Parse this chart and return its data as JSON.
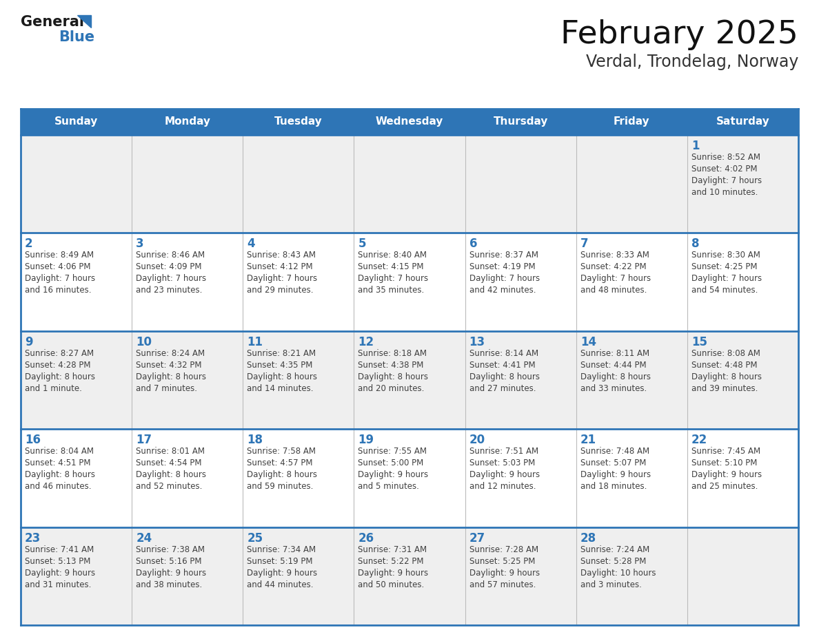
{
  "title": "February 2025",
  "subtitle": "Verdal, Trondelag, Norway",
  "days_of_week": [
    "Sunday",
    "Monday",
    "Tuesday",
    "Wednesday",
    "Thursday",
    "Friday",
    "Saturday"
  ],
  "header_bg": "#2E75B6",
  "header_text": "#FFFFFF",
  "cell_bg_light": "#EFEFEF",
  "cell_bg_white": "#FFFFFF",
  "day_number_color": "#2E75B6",
  "text_color": "#404040",
  "grid_line_color": "#2E75B6",
  "logo_general_color": "#1a1a1a",
  "logo_blue_color": "#2E75B6",
  "weeks": [
    [
      {
        "day": null,
        "info": ""
      },
      {
        "day": null,
        "info": ""
      },
      {
        "day": null,
        "info": ""
      },
      {
        "day": null,
        "info": ""
      },
      {
        "day": null,
        "info": ""
      },
      {
        "day": null,
        "info": ""
      },
      {
        "day": 1,
        "info": "Sunrise: 8:52 AM\nSunset: 4:02 PM\nDaylight: 7 hours\nand 10 minutes."
      }
    ],
    [
      {
        "day": 2,
        "info": "Sunrise: 8:49 AM\nSunset: 4:06 PM\nDaylight: 7 hours\nand 16 minutes."
      },
      {
        "day": 3,
        "info": "Sunrise: 8:46 AM\nSunset: 4:09 PM\nDaylight: 7 hours\nand 23 minutes."
      },
      {
        "day": 4,
        "info": "Sunrise: 8:43 AM\nSunset: 4:12 PM\nDaylight: 7 hours\nand 29 minutes."
      },
      {
        "day": 5,
        "info": "Sunrise: 8:40 AM\nSunset: 4:15 PM\nDaylight: 7 hours\nand 35 minutes."
      },
      {
        "day": 6,
        "info": "Sunrise: 8:37 AM\nSunset: 4:19 PM\nDaylight: 7 hours\nand 42 minutes."
      },
      {
        "day": 7,
        "info": "Sunrise: 8:33 AM\nSunset: 4:22 PM\nDaylight: 7 hours\nand 48 minutes."
      },
      {
        "day": 8,
        "info": "Sunrise: 8:30 AM\nSunset: 4:25 PM\nDaylight: 7 hours\nand 54 minutes."
      }
    ],
    [
      {
        "day": 9,
        "info": "Sunrise: 8:27 AM\nSunset: 4:28 PM\nDaylight: 8 hours\nand 1 minute."
      },
      {
        "day": 10,
        "info": "Sunrise: 8:24 AM\nSunset: 4:32 PM\nDaylight: 8 hours\nand 7 minutes."
      },
      {
        "day": 11,
        "info": "Sunrise: 8:21 AM\nSunset: 4:35 PM\nDaylight: 8 hours\nand 14 minutes."
      },
      {
        "day": 12,
        "info": "Sunrise: 8:18 AM\nSunset: 4:38 PM\nDaylight: 8 hours\nand 20 minutes."
      },
      {
        "day": 13,
        "info": "Sunrise: 8:14 AM\nSunset: 4:41 PM\nDaylight: 8 hours\nand 27 minutes."
      },
      {
        "day": 14,
        "info": "Sunrise: 8:11 AM\nSunset: 4:44 PM\nDaylight: 8 hours\nand 33 minutes."
      },
      {
        "day": 15,
        "info": "Sunrise: 8:08 AM\nSunset: 4:48 PM\nDaylight: 8 hours\nand 39 minutes."
      }
    ],
    [
      {
        "day": 16,
        "info": "Sunrise: 8:04 AM\nSunset: 4:51 PM\nDaylight: 8 hours\nand 46 minutes."
      },
      {
        "day": 17,
        "info": "Sunrise: 8:01 AM\nSunset: 4:54 PM\nDaylight: 8 hours\nand 52 minutes."
      },
      {
        "day": 18,
        "info": "Sunrise: 7:58 AM\nSunset: 4:57 PM\nDaylight: 8 hours\nand 59 minutes."
      },
      {
        "day": 19,
        "info": "Sunrise: 7:55 AM\nSunset: 5:00 PM\nDaylight: 9 hours\nand 5 minutes."
      },
      {
        "day": 20,
        "info": "Sunrise: 7:51 AM\nSunset: 5:03 PM\nDaylight: 9 hours\nand 12 minutes."
      },
      {
        "day": 21,
        "info": "Sunrise: 7:48 AM\nSunset: 5:07 PM\nDaylight: 9 hours\nand 18 minutes."
      },
      {
        "day": 22,
        "info": "Sunrise: 7:45 AM\nSunset: 5:10 PM\nDaylight: 9 hours\nand 25 minutes."
      }
    ],
    [
      {
        "day": 23,
        "info": "Sunrise: 7:41 AM\nSunset: 5:13 PM\nDaylight: 9 hours\nand 31 minutes."
      },
      {
        "day": 24,
        "info": "Sunrise: 7:38 AM\nSunset: 5:16 PM\nDaylight: 9 hours\nand 38 minutes."
      },
      {
        "day": 25,
        "info": "Sunrise: 7:34 AM\nSunset: 5:19 PM\nDaylight: 9 hours\nand 44 minutes."
      },
      {
        "day": 26,
        "info": "Sunrise: 7:31 AM\nSunset: 5:22 PM\nDaylight: 9 hours\nand 50 minutes."
      },
      {
        "day": 27,
        "info": "Sunrise: 7:28 AM\nSunset: 5:25 PM\nDaylight: 9 hours\nand 57 minutes."
      },
      {
        "day": 28,
        "info": "Sunrise: 7:24 AM\nSunset: 5:28 PM\nDaylight: 10 hours\nand 3 minutes."
      },
      {
        "day": null,
        "info": ""
      }
    ]
  ]
}
